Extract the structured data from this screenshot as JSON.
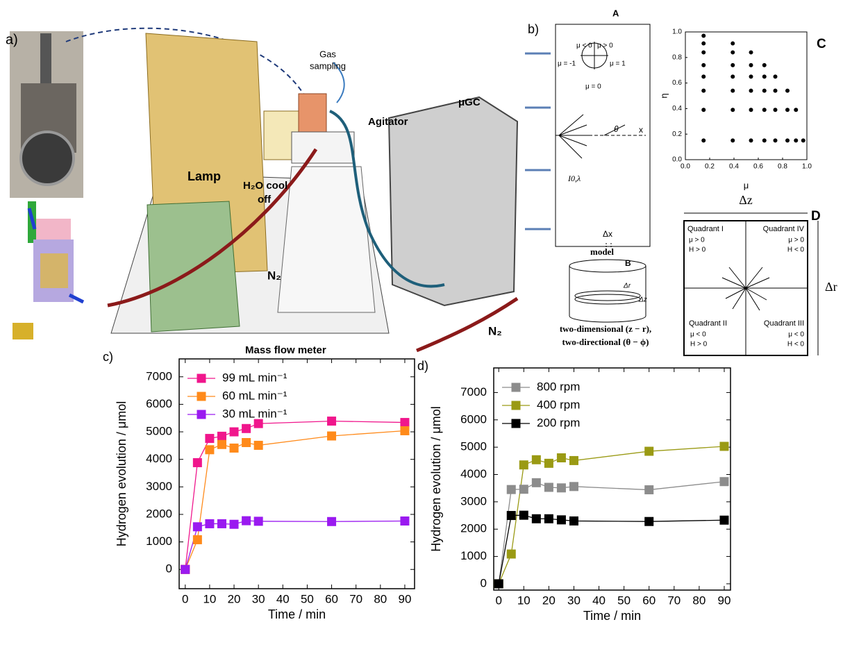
{
  "panel_a": {
    "label": "a)",
    "gas_sampling": [
      "Gas",
      "sampling"
    ],
    "ugc": "μGC",
    "agitator": "Agitator",
    "lamp": "Lamp",
    "cool_off": [
      "H₂O cool",
      "off"
    ],
    "n2_left": "N₂",
    "n2_right": "N₂",
    "mass_flow_meter": "Mass flow meter"
  },
  "panel_b": {
    "label": "b)",
    "model_a": {
      "letter": "A",
      "mu_neg": "μ < 0",
      "mu_pos": "μ > 0",
      "mu_minus_one": "μ = -1",
      "mu_one": "μ = 1",
      "mu_zero": "μ = 0",
      "x_axis": "x",
      "theta": "θ",
      "intensity": "I0,λ",
      "dx": "Δx",
      "caption": "model"
    },
    "model_b": {
      "letter": "B",
      "dr": "Δr",
      "dz": "Δz",
      "caption": [
        "two-dimensional (z − r),",
        "two-directional (θ − ϕ)"
      ]
    }
  },
  "panel_d": {
    "letter": "D",
    "dz": "Δz",
    "dr": "Δr",
    "quadrants": [
      {
        "name": "Quadrant I",
        "mu": "μ > 0",
        "h": "H > 0"
      },
      {
        "name": "Quadrant IV",
        "mu": "μ > 0",
        "h": "H < 0"
      },
      {
        "name": "Quadrant II",
        "mu": "μ < 0",
        "h": "H > 0"
      },
      {
        "name": "Quadrant III",
        "mu": "μ < 0",
        "h": "H < 0"
      }
    ]
  },
  "chart_data": [
    {
      "type": "scatter",
      "panel": "C",
      "xlabel": "μ",
      "ylabel": "η",
      "color": "#000000",
      "x": [
        0.15,
        0.15,
        0.15,
        0.15,
        0.15,
        0.15,
        0.15,
        0.15,
        0.39,
        0.39,
        0.39,
        0.39,
        0.39,
        0.39,
        0.39,
        0.54,
        0.54,
        0.54,
        0.54,
        0.54,
        0.54,
        0.65,
        0.65,
        0.65,
        0.65,
        0.65,
        0.74,
        0.74,
        0.74,
        0.74,
        0.84,
        0.84,
        0.84,
        0.91,
        0.91,
        0.97
      ],
      "y": [
        0.15,
        0.39,
        0.54,
        0.65,
        0.74,
        0.84,
        0.91,
        0.97,
        0.15,
        0.39,
        0.54,
        0.65,
        0.74,
        0.84,
        0.91,
        0.15,
        0.39,
        0.54,
        0.65,
        0.74,
        0.84,
        0.15,
        0.39,
        0.54,
        0.65,
        0.74,
        0.15,
        0.39,
        0.54,
        0.65,
        0.15,
        0.39,
        0.54,
        0.15,
        0.39,
        0.15
      ],
      "xlim": [
        0,
        1
      ],
      "ylim": [
        0,
        1
      ],
      "xticks": [
        {
          "value": 0,
          "label": "0.0"
        },
        0.2,
        0.4,
        0.6,
        0.8,
        {
          "value": 1,
          "label": "1.0"
        }
      ],
      "yticks": [
        {
          "value": 0,
          "label": "0.0"
        },
        0.2,
        0.4,
        0.6,
        0.8,
        {
          "value": 1,
          "label": "1.0"
        }
      ]
    },
    {
      "type": "line",
      "panel": "c)",
      "xlabel": "Time / min",
      "ylabel": "Hydrogen evolution / μmol",
      "legend": "upper left",
      "x": [
        0,
        5,
        10,
        15,
        20,
        25,
        30,
        60,
        90
      ],
      "series": [
        {
          "name": "99 mL min⁻¹",
          "color": "#f0168c",
          "values": [
            0,
            3880,
            4760,
            4840,
            5000,
            5120,
            5300,
            5390,
            5340
          ]
        },
        {
          "name": "60 mL min⁻¹",
          "color": "#ff8a1a",
          "values": [
            0,
            1080,
            4350,
            4540,
            4410,
            4610,
            4510,
            4850,
            5040
          ]
        },
        {
          "name": "30 mL min⁻¹",
          "color": "#9a1af0",
          "values": [
            0,
            1550,
            1660,
            1660,
            1640,
            1770,
            1750,
            1740,
            1760
          ]
        }
      ],
      "xlim": [
        -2.5,
        94
      ],
      "ylim": [
        -700,
        7650
      ],
      "xticks": [
        0,
        10,
        20,
        30,
        40,
        50,
        60,
        70,
        80,
        90
      ],
      "yticks": [
        0,
        1000,
        2000,
        3000,
        4000,
        5000,
        6000,
        7000
      ]
    },
    {
      "type": "line",
      "panel": "d)",
      "xlabel": "Time / min",
      "ylabel": "Hydrogen evolution / μmol",
      "legend": "upper left",
      "x": [
        0,
        5,
        10,
        15,
        20,
        25,
        30,
        60,
        90
      ],
      "series": [
        {
          "name": "800 rpm",
          "color": "#8c8c8c",
          "values": [
            0,
            3450,
            3460,
            3700,
            3530,
            3510,
            3560,
            3440,
            3740
          ]
        },
        {
          "name": "400 rpm",
          "color": "#9a9a14",
          "values": [
            0,
            1090,
            4350,
            4540,
            4410,
            4610,
            4510,
            4850,
            5030
          ]
        },
        {
          "name": "200 rpm",
          "color": "#000000",
          "values": [
            0,
            2500,
            2510,
            2380,
            2380,
            2340,
            2300,
            2280,
            2330
          ]
        }
      ],
      "xlim": [
        -2,
        92.5
      ],
      "ylim": [
        -230,
        7900
      ],
      "xticks": [
        0,
        10,
        20,
        30,
        40,
        50,
        60,
        70,
        80,
        90
      ],
      "yticks": [
        0,
        1000,
        2000,
        3000,
        4000,
        5000,
        6000,
        7000
      ]
    }
  ]
}
